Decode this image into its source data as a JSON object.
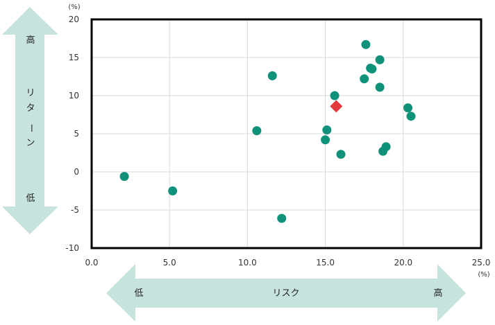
{
  "chart_data": {
    "type": "scatter",
    "title": "",
    "xlabel": "",
    "ylabel": "",
    "x_unit": "(%)",
    "y_unit": "(%)",
    "xlim": [
      0,
      25
    ],
    "ylim": [
      -10,
      20
    ],
    "x_ticks": [
      "0.0",
      "5.0",
      "10.0",
      "15.0",
      "20.0",
      "25.0"
    ],
    "y_ticks": [
      "20",
      "15",
      "10",
      "5",
      "0",
      "-5",
      "-10"
    ],
    "grid": true,
    "series": [
      {
        "marker": "circle",
        "color": "#10917a",
        "points": [
          {
            "x": 2.1,
            "y": -0.6
          },
          {
            "x": 5.2,
            "y": -2.5
          },
          {
            "x": 10.6,
            "y": 5.4
          },
          {
            "x": 11.6,
            "y": 12.6
          },
          {
            "x": 12.2,
            "y": -6.1
          },
          {
            "x": 15.0,
            "y": 4.2
          },
          {
            "x": 15.1,
            "y": 5.5
          },
          {
            "x": 15.6,
            "y": 10.0
          },
          {
            "x": 16.0,
            "y": 2.3
          },
          {
            "x": 17.5,
            "y": 12.2
          },
          {
            "x": 17.6,
            "y": 16.7
          },
          {
            "x": 17.9,
            "y": 13.6
          },
          {
            "x": 18.0,
            "y": 13.5
          },
          {
            "x": 18.5,
            "y": 14.7
          },
          {
            "x": 18.5,
            "y": 11.1
          },
          {
            "x": 18.7,
            "y": 2.7
          },
          {
            "x": 18.9,
            "y": 3.3
          },
          {
            "x": 20.3,
            "y": 8.4
          },
          {
            "x": 20.5,
            "y": 7.3
          }
        ]
      },
      {
        "marker": "diamond",
        "color": "#e03a3e",
        "points": [
          {
            "x": 15.7,
            "y": 8.6
          }
        ]
      }
    ]
  },
  "axis_arrows": {
    "horizontal": {
      "low": "低",
      "label": "リスク",
      "high": "高"
    },
    "vertical": {
      "high": "高",
      "label": [
        "リ",
        "タ",
        "ー",
        "ン"
      ],
      "low": "低"
    },
    "color": "#c7e3dd"
  }
}
